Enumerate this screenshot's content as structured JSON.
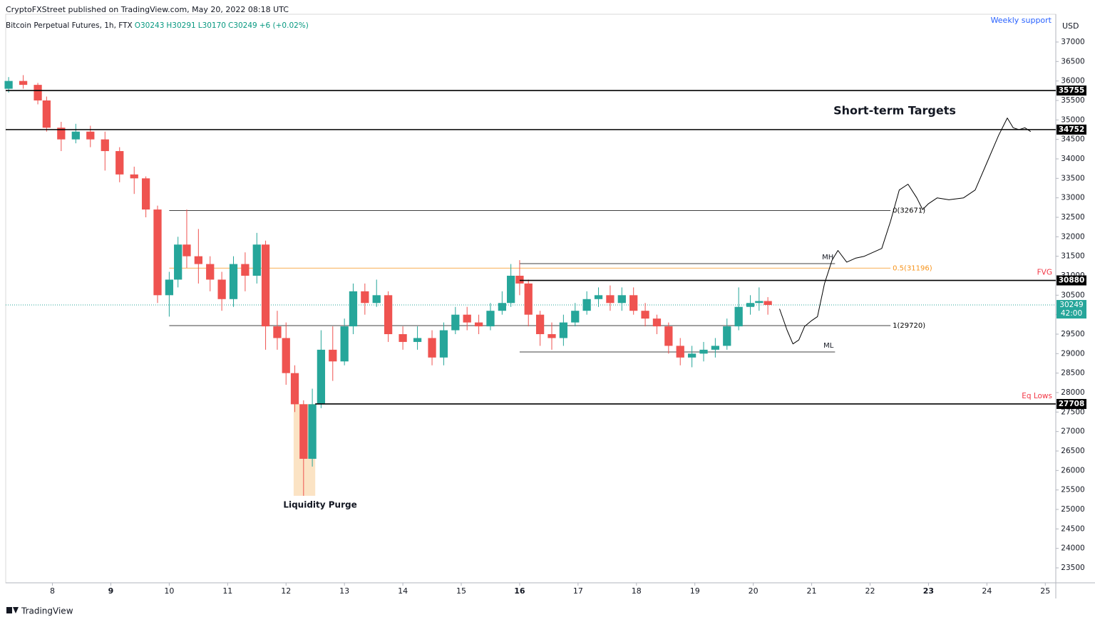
{
  "header": {
    "publisher": "CryptoFXStreet published on TradingView.com, May 20, 2022 08:18 UTC",
    "symbol": "Bitcoin Perpetual Futures, 1h, FTX",
    "ohlc": [
      "O30243",
      "H30291",
      "L30170",
      "C30249",
      "+6 (+0.02%)"
    ]
  },
  "footer": {
    "brand": "TradingView"
  },
  "chart_data": {
    "type": "candlestick",
    "y_unit": "USD",
    "xlim": [
      7.2,
      25.18
    ],
    "xticks": [
      8,
      9,
      10,
      11,
      12,
      13,
      14,
      15,
      16,
      17,
      18,
      19,
      20,
      21,
      22,
      23,
      24,
      25
    ],
    "xticks_bold": [
      9,
      16,
      23
    ],
    "ylim": [
      23116,
      37713
    ],
    "yticks": [
      23500,
      24000,
      24500,
      25000,
      25500,
      26000,
      26500,
      27000,
      27500,
      28000,
      28500,
      29000,
      29500,
      30000,
      30500,
      31000,
      31500,
      32000,
      32500,
      33000,
      33500,
      34000,
      34500,
      35000,
      35500,
      36000,
      36500,
      37000
    ],
    "up_color": "#26a69a",
    "down_color": "#ef5350",
    "candles": {
      "x": [
        7.25,
        7.5,
        7.75,
        7.9,
        8.15,
        8.4,
        8.65,
        8.9,
        9.15,
        9.4,
        9.6,
        9.8,
        10.0,
        10.15,
        10.3,
        10.5,
        10.7,
        10.9,
        11.1,
        11.3,
        11.5,
        11.65,
        11.85,
        12.0,
        12.15,
        12.3,
        12.45,
        12.6,
        12.8,
        13.0,
        13.15,
        13.35,
        13.55,
        13.75,
        14.0,
        14.25,
        14.5,
        14.7,
        14.9,
        15.1,
        15.3,
        15.5,
        15.7,
        15.85,
        16.0,
        16.15,
        16.35,
        16.55,
        16.75,
        16.95,
        17.15,
        17.35,
        17.55,
        17.75,
        17.95,
        18.15,
        18.35,
        18.55,
        18.75,
        18.95,
        19.15,
        19.35,
        19.55,
        19.75,
        19.95,
        20.1,
        20.25
      ],
      "open": [
        35800,
        36000,
        35900,
        35500,
        34800,
        34500,
        34700,
        34500,
        34200,
        33600,
        33500,
        32700,
        30500,
        30900,
        31800,
        31500,
        31300,
        30900,
        30400,
        31300,
        31000,
        31800,
        29700,
        29400,
        28500,
        27700,
        26300,
        27700,
        29100,
        28800,
        29700,
        30600,
        30300,
        30500,
        29500,
        29300,
        29400,
        28900,
        29600,
        30000,
        29800,
        29700,
        30100,
        30300,
        31000,
        30800,
        30000,
        29500,
        29400,
        29800,
        30100,
        30400,
        30500,
        30300,
        30500,
        30100,
        29900,
        29700,
        29200,
        28900,
        29000,
        29100,
        29200,
        29700,
        30200,
        30300,
        30350
      ],
      "high": [
        36100,
        36150,
        35950,
        35600,
        34950,
        34900,
        34850,
        34700,
        34300,
        33800,
        33550,
        32800,
        31100,
        32000,
        32700,
        32200,
        31500,
        31100,
        31500,
        31600,
        32100,
        31900,
        30100,
        29800,
        28700,
        27800,
        28100,
        29600,
        29700,
        29900,
        30800,
        30800,
        30900,
        30600,
        29700,
        29700,
        29600,
        29800,
        30200,
        30200,
        30000,
        30300,
        30600,
        31300,
        31400,
        30900,
        30100,
        29800,
        30000,
        30300,
        30600,
        30700,
        30750,
        30700,
        30700,
        30300,
        30000,
        29800,
        29400,
        29200,
        29300,
        29400,
        29900,
        30700,
        30500,
        30700,
        30450
      ],
      "low": [
        35700,
        35800,
        35400,
        34700,
        34200,
        34400,
        34300,
        33700,
        33400,
        33100,
        32500,
        30300,
        29950,
        30700,
        31200,
        30800,
        30600,
        30100,
        30200,
        30600,
        30800,
        29100,
        29100,
        28200,
        27500,
        25350,
        26100,
        27600,
        28300,
        28700,
        29500,
        30000,
        30200,
        29300,
        29100,
        29100,
        28700,
        28700,
        29500,
        29600,
        29500,
        29600,
        30000,
        30200,
        30500,
        29700,
        29200,
        29100,
        29200,
        29700,
        30000,
        30200,
        30100,
        30100,
        30000,
        29700,
        29500,
        29000,
        28700,
        28650,
        28800,
        28900,
        29100,
        29600,
        30000,
        30100,
        30000
      ],
      "close": [
        36000,
        35900,
        35500,
        34800,
        34500,
        34700,
        34500,
        34200,
        33600,
        33500,
        32700,
        30500,
        30900,
        31800,
        31500,
        31300,
        30900,
        30400,
        31300,
        31000,
        31800,
        29700,
        29400,
        28500,
        27700,
        26300,
        27700,
        29100,
        28800,
        29700,
        30600,
        30300,
        30500,
        29500,
        29300,
        29400,
        28900,
        29600,
        30000,
        29800,
        29700,
        30100,
        30300,
        31000,
        30800,
        30000,
        29500,
        29400,
        29800,
        30100,
        30400,
        30500,
        30300,
        30500,
        30100,
        29900,
        29700,
        29200,
        28900,
        29000,
        29100,
        29200,
        29700,
        30200,
        30300,
        30350,
        30249
      ]
    },
    "levels": [
      {
        "value": 35755,
        "x0": 7.2,
        "label": null
      },
      {
        "value": 34752,
        "x0": 7.2,
        "label": null
      },
      {
        "value": 30880,
        "x0": 16.0,
        "label": "FVG"
      },
      {
        "value": 27708,
        "x0": 12.5,
        "label": "Eq Lows"
      }
    ],
    "current_price": {
      "value": 30249,
      "countdown": "42:00",
      "color": "#26a69a"
    },
    "fib_lines": [
      {
        "name": "0(32671)",
        "value": 32671,
        "x0": 10.0,
        "x1": 22.35,
        "color": "#000000"
      },
      {
        "name": "0.5(31196)",
        "value": 31196,
        "x0": 10.0,
        "x1": 22.35,
        "color": "#f7931a"
      },
      {
        "name": "1(29720)",
        "value": 29720,
        "x0": 10.0,
        "x1": 22.35,
        "color": "#000000"
      }
    ],
    "range_lines": [
      {
        "name": "MH",
        "value": 31311,
        "x0": 16.0,
        "x1": 21.4
      },
      {
        "name": "ML",
        "value": 29043,
        "x0": 16.0,
        "x1": 21.4
      }
    ],
    "zone": {
      "name": "Liquidity Purge",
      "x": [
        12.13,
        12.5
      ],
      "y": [
        25350,
        27708
      ],
      "color": "#fbe3c4"
    },
    "projection": {
      "name": "Short-term Targets",
      "x": [
        20.45,
        20.58,
        20.68,
        20.78,
        20.88,
        21.0,
        21.1,
        21.22,
        21.35,
        21.45,
        21.6,
        21.75,
        21.9,
        22.05,
        22.2,
        22.35,
        22.5,
        22.65,
        22.8,
        22.9,
        23.0,
        23.15,
        23.35,
        23.6,
        23.8,
        24.0,
        24.2,
        24.35,
        24.45,
        24.55,
        24.65,
        24.75
      ],
      "values": [
        30150,
        29600,
        29250,
        29350,
        29700,
        29850,
        29950,
        30800,
        31400,
        31650,
        31350,
        31450,
        31500,
        31600,
        31700,
        32400,
        33200,
        33350,
        33000,
        32700,
        32850,
        33000,
        32950,
        33000,
        33200,
        33900,
        34600,
        35050,
        34800,
        34750,
        34800,
        34700
      ]
    },
    "note": "Weekly support"
  }
}
